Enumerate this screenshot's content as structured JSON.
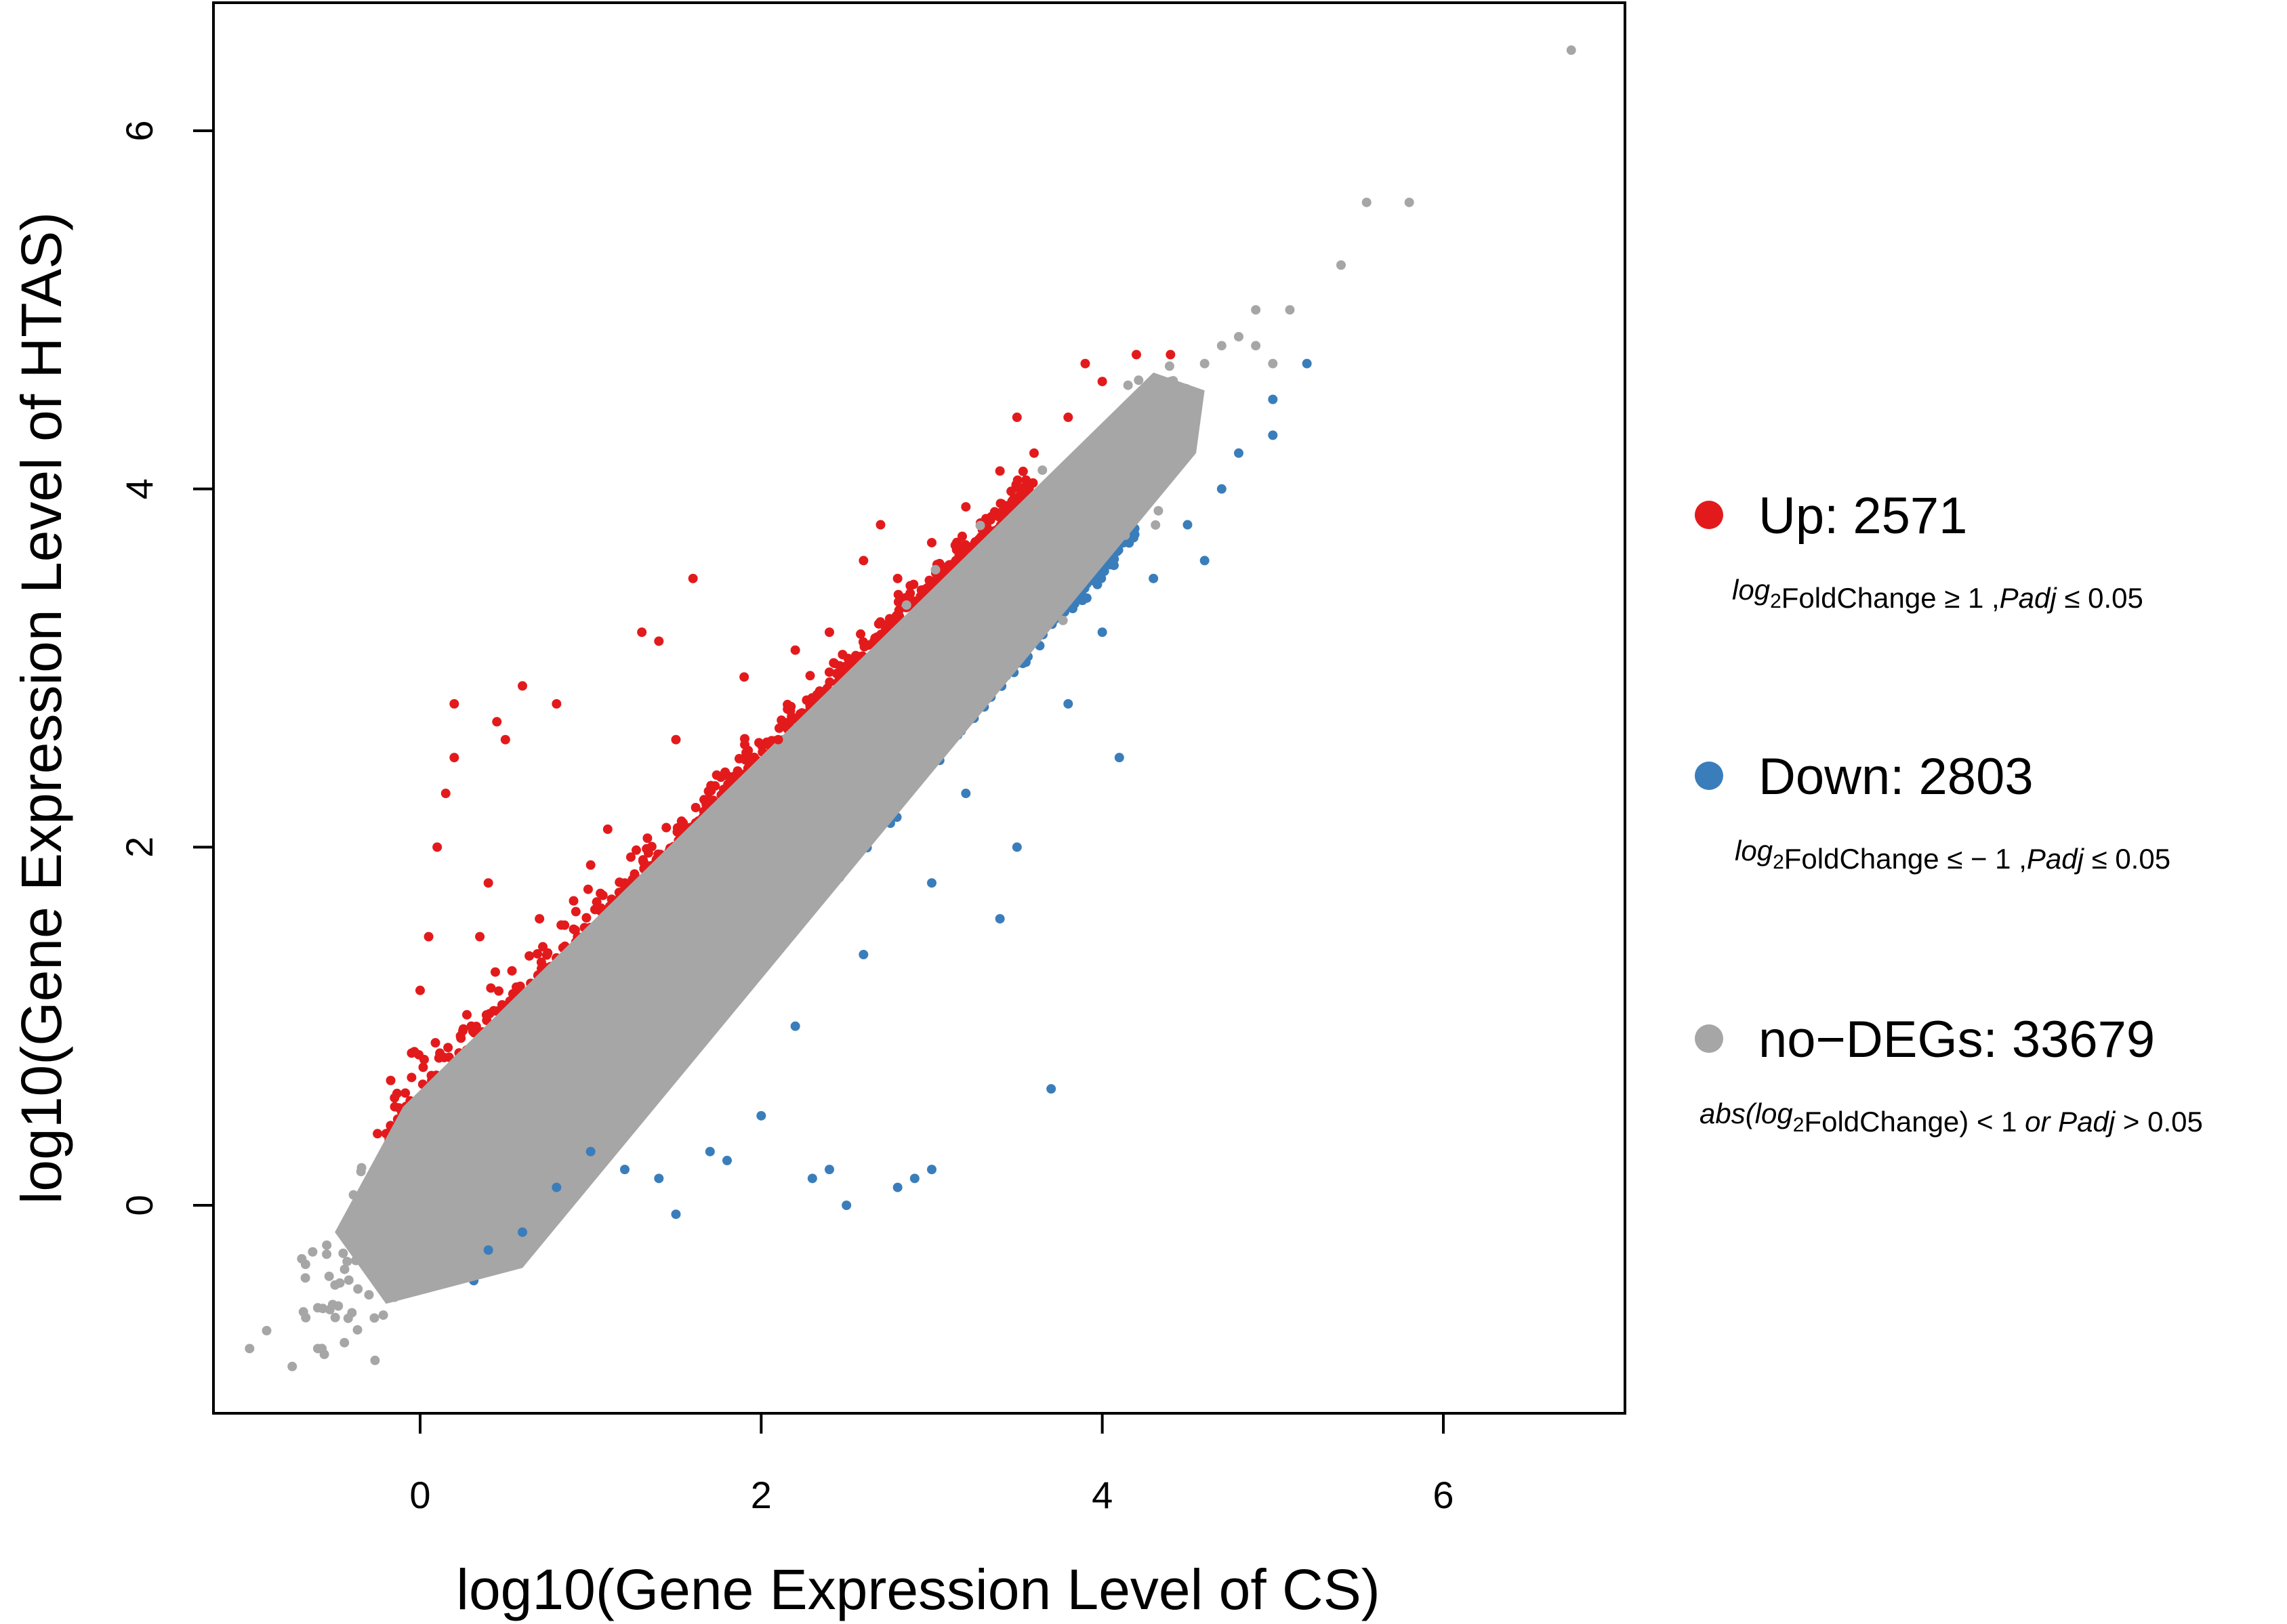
{
  "chart_data": {
    "type": "scatter",
    "title": "",
    "xlabel": "log10(Gene Expression Level of CS)",
    "ylabel": "log10(Gene Expression Level of HTAS)",
    "xlim": [
      -1.2,
      7.0
    ],
    "ylim": [
      -1.15,
      6.75
    ],
    "x_ticks": [
      0,
      2,
      4,
      6
    ],
    "y_ticks": [
      0,
      2,
      4,
      6
    ],
    "x_tick_labels": [
      "0",
      "2",
      "4",
      "6"
    ],
    "y_tick_labels": [
      "0",
      "2",
      "4",
      "6"
    ],
    "grid": false,
    "legend_position": "right",
    "colors": {
      "up": "#e31a1c",
      "down": "#3a7dbb",
      "no": "#a6a6a6"
    },
    "series": [
      {
        "name": "Up",
        "count": 2571,
        "label": "Up: 2571",
        "condition": {
          "pre": "",
          "log": "log",
          "sub": "2",
          "mid": "FoldChange ",
          "rel": "≥ 1 ,",
          "padj": "Padj",
          "post": " ≤ 0.05"
        },
        "points": [
          [
            -0.25,
            0.4
          ],
          [
            -0.15,
            0.6
          ],
          [
            -0.05,
            0.85
          ],
          [
            0.0,
            1.2
          ],
          [
            0.05,
            1.5
          ],
          [
            0.1,
            2.0
          ],
          [
            0.15,
            2.3
          ],
          [
            0.2,
            2.5
          ],
          [
            0.2,
            2.8
          ],
          [
            0.3,
            1.0
          ],
          [
            0.35,
            1.5
          ],
          [
            0.4,
            1.8
          ],
          [
            0.45,
            2.7
          ],
          [
            0.5,
            2.6
          ],
          [
            0.6,
            2.9
          ],
          [
            0.8,
            2.8
          ],
          [
            0.7,
            1.6
          ],
          [
            0.9,
            1.7
          ],
          [
            1.0,
            1.9
          ],
          [
            1.1,
            2.1
          ],
          [
            1.2,
            1.8
          ],
          [
            1.3,
            3.2
          ],
          [
            1.4,
            3.15
          ],
          [
            1.6,
            3.5
          ],
          [
            1.5,
            2.6
          ],
          [
            1.8,
            2.4
          ],
          [
            1.9,
            2.95
          ],
          [
            2.1,
            2.6
          ],
          [
            2.2,
            3.1
          ],
          [
            2.4,
            3.2
          ],
          [
            2.6,
            3.6
          ],
          [
            2.7,
            3.8
          ],
          [
            2.8,
            3.5
          ],
          [
            3.0,
            3.7
          ],
          [
            3.2,
            3.9
          ],
          [
            3.4,
            4.1
          ],
          [
            3.6,
            4.2
          ],
          [
            3.8,
            4.4
          ],
          [
            4.0,
            4.6
          ],
          [
            4.2,
            4.75
          ],
          [
            4.4,
            4.75
          ],
          [
            3.9,
            4.7
          ],
          [
            3.5,
            4.4
          ]
        ],
        "band_x_range": [
          -0.2,
          3.6
        ]
      },
      {
        "name": "Down",
        "count": 2803,
        "label": "Down: 2803",
        "condition": {
          "pre": "",
          "log": "log",
          "sub": "2",
          "mid": "FoldChange ",
          "rel": "≤ − 1 ,",
          "padj": "Padj",
          "post": " ≤ 0.05"
        },
        "points": [
          [
            0.4,
            -0.25
          ],
          [
            0.6,
            -0.15
          ],
          [
            0.8,
            0.1
          ],
          [
            1.0,
            0.3
          ],
          [
            1.2,
            0.2
          ],
          [
            1.4,
            0.15
          ],
          [
            1.5,
            -0.05
          ],
          [
            1.7,
            0.3
          ],
          [
            1.8,
            0.25
          ],
          [
            2.0,
            0.5
          ],
          [
            2.2,
            1.0
          ],
          [
            2.3,
            0.15
          ],
          [
            2.4,
            0.2
          ],
          [
            2.5,
            0.0
          ],
          [
            2.8,
            0.1
          ],
          [
            2.9,
            0.15
          ],
          [
            3.0,
            0.2
          ],
          [
            2.6,
            1.4
          ],
          [
            3.0,
            1.8
          ],
          [
            3.2,
            2.3
          ],
          [
            3.5,
            2.0
          ],
          [
            3.7,
            0.65
          ],
          [
            3.8,
            2.8
          ],
          [
            4.0,
            3.2
          ],
          [
            4.1,
            2.5
          ],
          [
            4.3,
            3.5
          ],
          [
            4.5,
            3.8
          ],
          [
            4.7,
            4.0
          ],
          [
            4.8,
            4.2
          ],
          [
            5.0,
            4.3
          ],
          [
            5.0,
            4.5
          ],
          [
            5.2,
            4.7
          ],
          [
            4.6,
            3.6
          ],
          [
            3.4,
            1.6
          ]
        ],
        "band_x_range": [
          0.3,
          4.2
        ]
      },
      {
        "name": "no-DEGs",
        "count": 33679,
        "label": "no−DEGs: 33679",
        "condition": {
          "pre": "abs(",
          "log": "log",
          "sub": "2",
          "mid": "FoldChange) ",
          "rel": "< 1 ",
          "padj": "or Padj",
          "post": " > 0.05"
        },
        "points": [
          [
            -1.0,
            -0.8
          ],
          [
            -0.9,
            -0.7
          ],
          [
            -0.75,
            -0.9
          ],
          [
            -0.6,
            -0.8
          ],
          [
            -0.4,
            -0.6
          ],
          [
            -0.3,
            -0.5
          ],
          [
            4.2,
            4.5
          ],
          [
            4.4,
            4.6
          ],
          [
            4.6,
            4.7
          ],
          [
            4.7,
            4.8
          ],
          [
            4.8,
            4.85
          ],
          [
            4.9,
            4.8
          ],
          [
            5.0,
            4.7
          ],
          [
            4.9,
            5.0
          ],
          [
            5.1,
            5.0
          ],
          [
            5.4,
            5.25
          ],
          [
            5.55,
            5.6
          ],
          [
            5.8,
            5.6
          ],
          [
            6.75,
            6.45
          ]
        ],
        "band_x_range": [
          -0.5,
          4.6
        ]
      }
    ]
  }
}
